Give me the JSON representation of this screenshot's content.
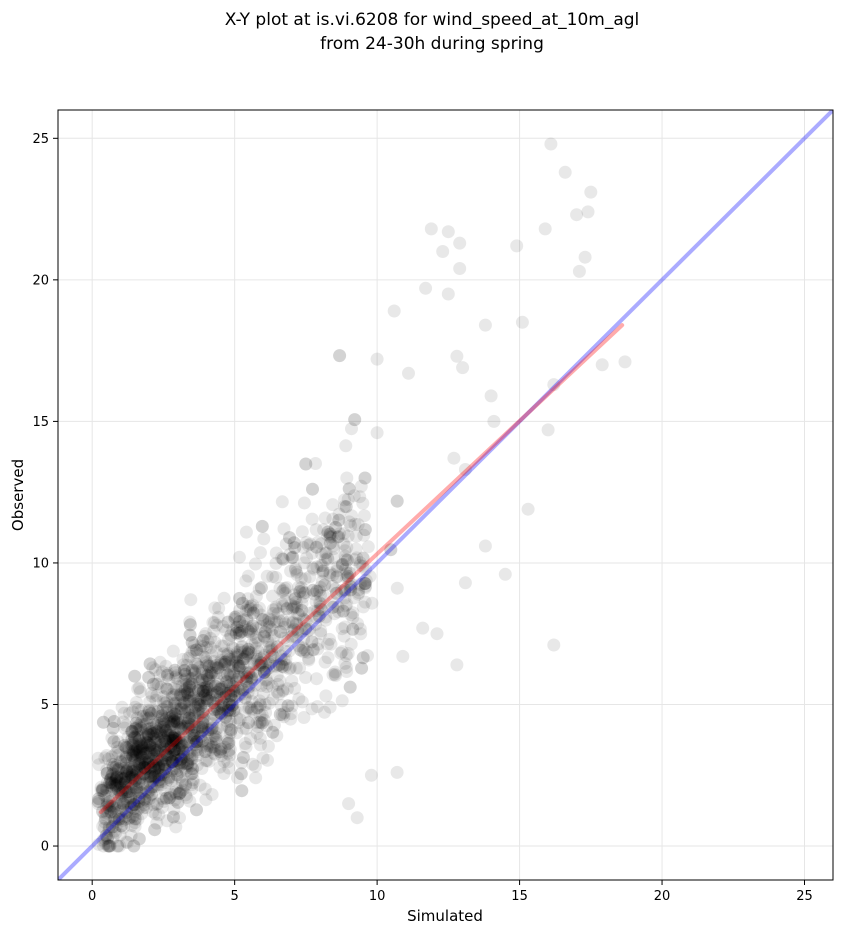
{
  "chart_data": {
    "type": "scatter",
    "title": [
      "X-Y plot at is.vi.6208 for wind_speed_at_10m_agl",
      "from 24-30h during spring"
    ],
    "xlabel": "Simulated",
    "ylabel": "Observed",
    "xlim": [
      -1.2,
      26.0
    ],
    "ylim": [
      -1.2,
      26.0
    ],
    "xticks": [
      0,
      5,
      10,
      15,
      20,
      25
    ],
    "yticks": [
      0,
      5,
      10,
      15,
      20,
      25
    ],
    "grid": true,
    "colors": {
      "points": "#000000",
      "identity_line": "#0000ff",
      "fit_line": "#ff0000"
    },
    "identity_line": {
      "x": [
        -1.2,
        26.0
      ],
      "y": [
        -1.2,
        26.0
      ]
    },
    "fit_line": {
      "x": [
        0.3,
        18.6
      ],
      "y": [
        1.2,
        18.4
      ]
    },
    "outliers": {
      "x": [
        16.1,
        16.6,
        17.5,
        17.0,
        17.4,
        12.5,
        12.9,
        11.9,
        12.3,
        12.9,
        14.9,
        12.5,
        10.6,
        11.7,
        10.0,
        12.8,
        13.8,
        15.1,
        13.0,
        11.1,
        10.0,
        15.9,
        16.2,
        17.1,
        17.3,
        16.0,
        18.7,
        17.9,
        16.2,
        14.0,
        14.1,
        13.8,
        14.5,
        13.1,
        15.3,
        12.8,
        12.1,
        13.1,
        10.9,
        11.6,
        9.8,
        9.0,
        9.3,
        10.7
      ],
      "y": [
        24.8,
        23.8,
        23.1,
        22.3,
        22.4,
        21.7,
        21.3,
        21.8,
        21.0,
        20.4,
        21.2,
        19.5,
        18.9,
        19.7,
        17.2,
        17.3,
        18.4,
        18.5,
        16.9,
        16.7,
        14.6,
        21.8,
        16.3,
        20.3,
        20.8,
        14.7,
        17.1,
        17.0,
        7.1,
        15.9,
        15.0,
        10.6,
        9.6,
        9.3,
        11.9,
        6.4,
        7.5,
        13.3,
        6.7,
        7.7,
        2.5,
        1.5,
        1.0,
        2.6
      ]
    },
    "cluster": {
      "count": 2000,
      "x_range": [
        0.2,
        14.5
      ],
      "y_intercept": 1.2,
      "y_slope": 0.94,
      "spread": 1.8
    }
  }
}
